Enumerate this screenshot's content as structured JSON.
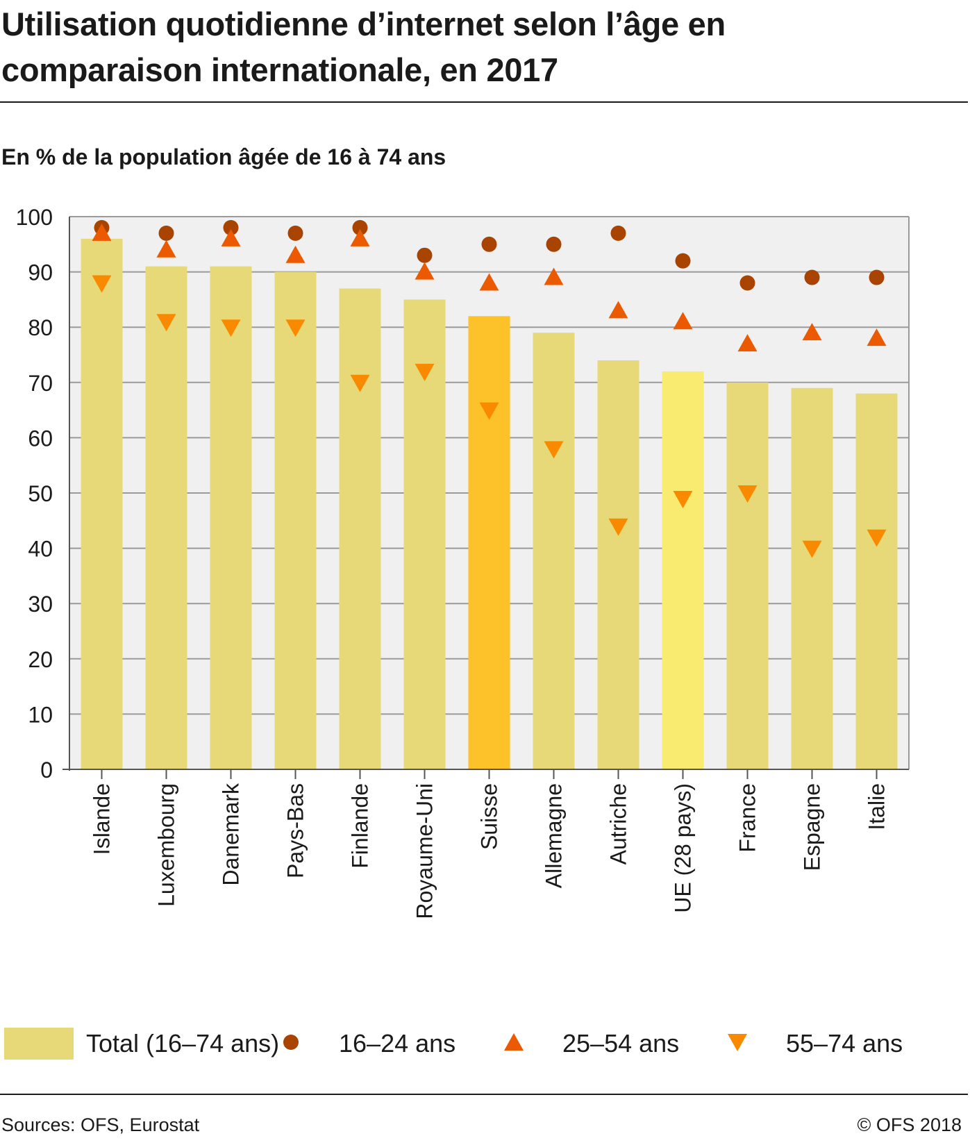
{
  "header": {
    "title_line1": "Utilisation quotidienne d’internet selon l’âge en",
    "title_line2": "comparaison internationale, en 2017",
    "subtitle": "En % de la population âgée de 16 à 74 ans"
  },
  "footer": {
    "sources": "Sources: OFS, Eurostat",
    "copyright": "© OFS 2018"
  },
  "colors": {
    "bar_default": "#e8d978",
    "bar_suisse": "#fdc12a",
    "bar_ue": "#f9ea70",
    "marker_16_24": "#a84300",
    "marker_25_54": "#eb5a00",
    "marker_55_74": "#f98a00",
    "plot_background": "#f0f0f0",
    "gridline": "#9a9a9a"
  },
  "chart_data": {
    "type": "bar",
    "title": "Utilisation quotidienne d’internet selon l’âge en comparaison internationale, en 2017",
    "ylabel": "En % de la population âgée de 16 à 74 ans",
    "xlabel": "",
    "ylim": [
      0,
      100
    ],
    "yticks": [
      0,
      10,
      20,
      30,
      40,
      50,
      60,
      70,
      80,
      90,
      100
    ],
    "grid": true,
    "legend_position": "bottom",
    "categories": [
      "Islande",
      "Luxembourg",
      "Danemark",
      "Pays-Bas",
      "Finlande",
      "Royaume-Uni",
      "Suisse",
      "Allemagne",
      "Autriche",
      "UE (28 pays)",
      "France",
      "Espagne",
      "Italie"
    ],
    "highlighted_categories": {
      "Suisse": "bar_suisse",
      "UE (28 pays)": "bar_ue"
    },
    "series": [
      {
        "name": "Total (16–74 ans)",
        "kind": "bar",
        "marker": "bar",
        "color_key": "bar_default",
        "values": [
          96,
          91,
          91,
          90,
          87,
          85,
          82,
          79,
          74,
          72,
          70,
          69,
          68
        ]
      },
      {
        "name": "16–24 ans",
        "kind": "marker",
        "marker": "circle",
        "color_key": "marker_16_24",
        "values": [
          98,
          97,
          98,
          97,
          98,
          93,
          95,
          95,
          97,
          92,
          88,
          89,
          89
        ]
      },
      {
        "name": "25–54 ans",
        "kind": "marker",
        "marker": "triangle-up",
        "color_key": "marker_25_54",
        "values": [
          97,
          94,
          96,
          93,
          96,
          90,
          88,
          89,
          83,
          81,
          77,
          79,
          78
        ]
      },
      {
        "name": "55–74 ans",
        "kind": "marker",
        "marker": "triangle-down",
        "color_key": "marker_55_74",
        "values": [
          88,
          81,
          80,
          80,
          70,
          72,
          65,
          58,
          44,
          49,
          50,
          40,
          42
        ]
      }
    ]
  }
}
